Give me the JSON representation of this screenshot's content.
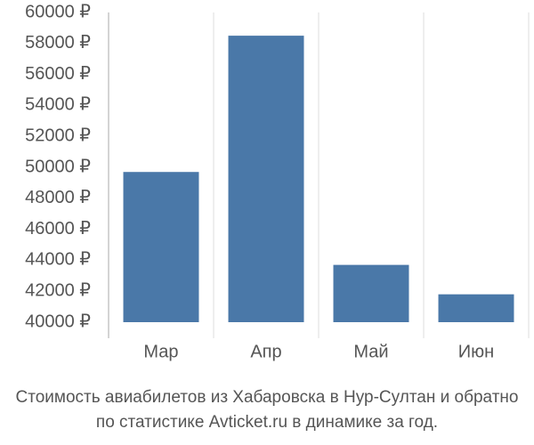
{
  "chart_data": {
    "type": "bar",
    "title": "",
    "xlabel": "",
    "ylabel": "",
    "categories": [
      "Мар",
      "Апр",
      "Май",
      "Июн"
    ],
    "values": [
      49700,
      58500,
      43700,
      41800
    ],
    "ylim": [
      40000,
      60000
    ],
    "y_ticks": [
      40000,
      42000,
      44000,
      46000,
      48000,
      50000,
      52000,
      54000,
      56000,
      58000,
      60000
    ],
    "y_tick_suffix": " ₽",
    "grid": true,
    "grid_axis": "x",
    "legend": "none",
    "colors": {
      "bar": "#4a78a8",
      "grid": "#dddddd",
      "axis": "#aaaaaa",
      "text": "#555555"
    }
  },
  "caption": {
    "line1": "Стоимость авиабилетов из Хабаровска в Нур-Султан и обратно",
    "line2": "по статистике Avticket.ru в динамике за год."
  }
}
